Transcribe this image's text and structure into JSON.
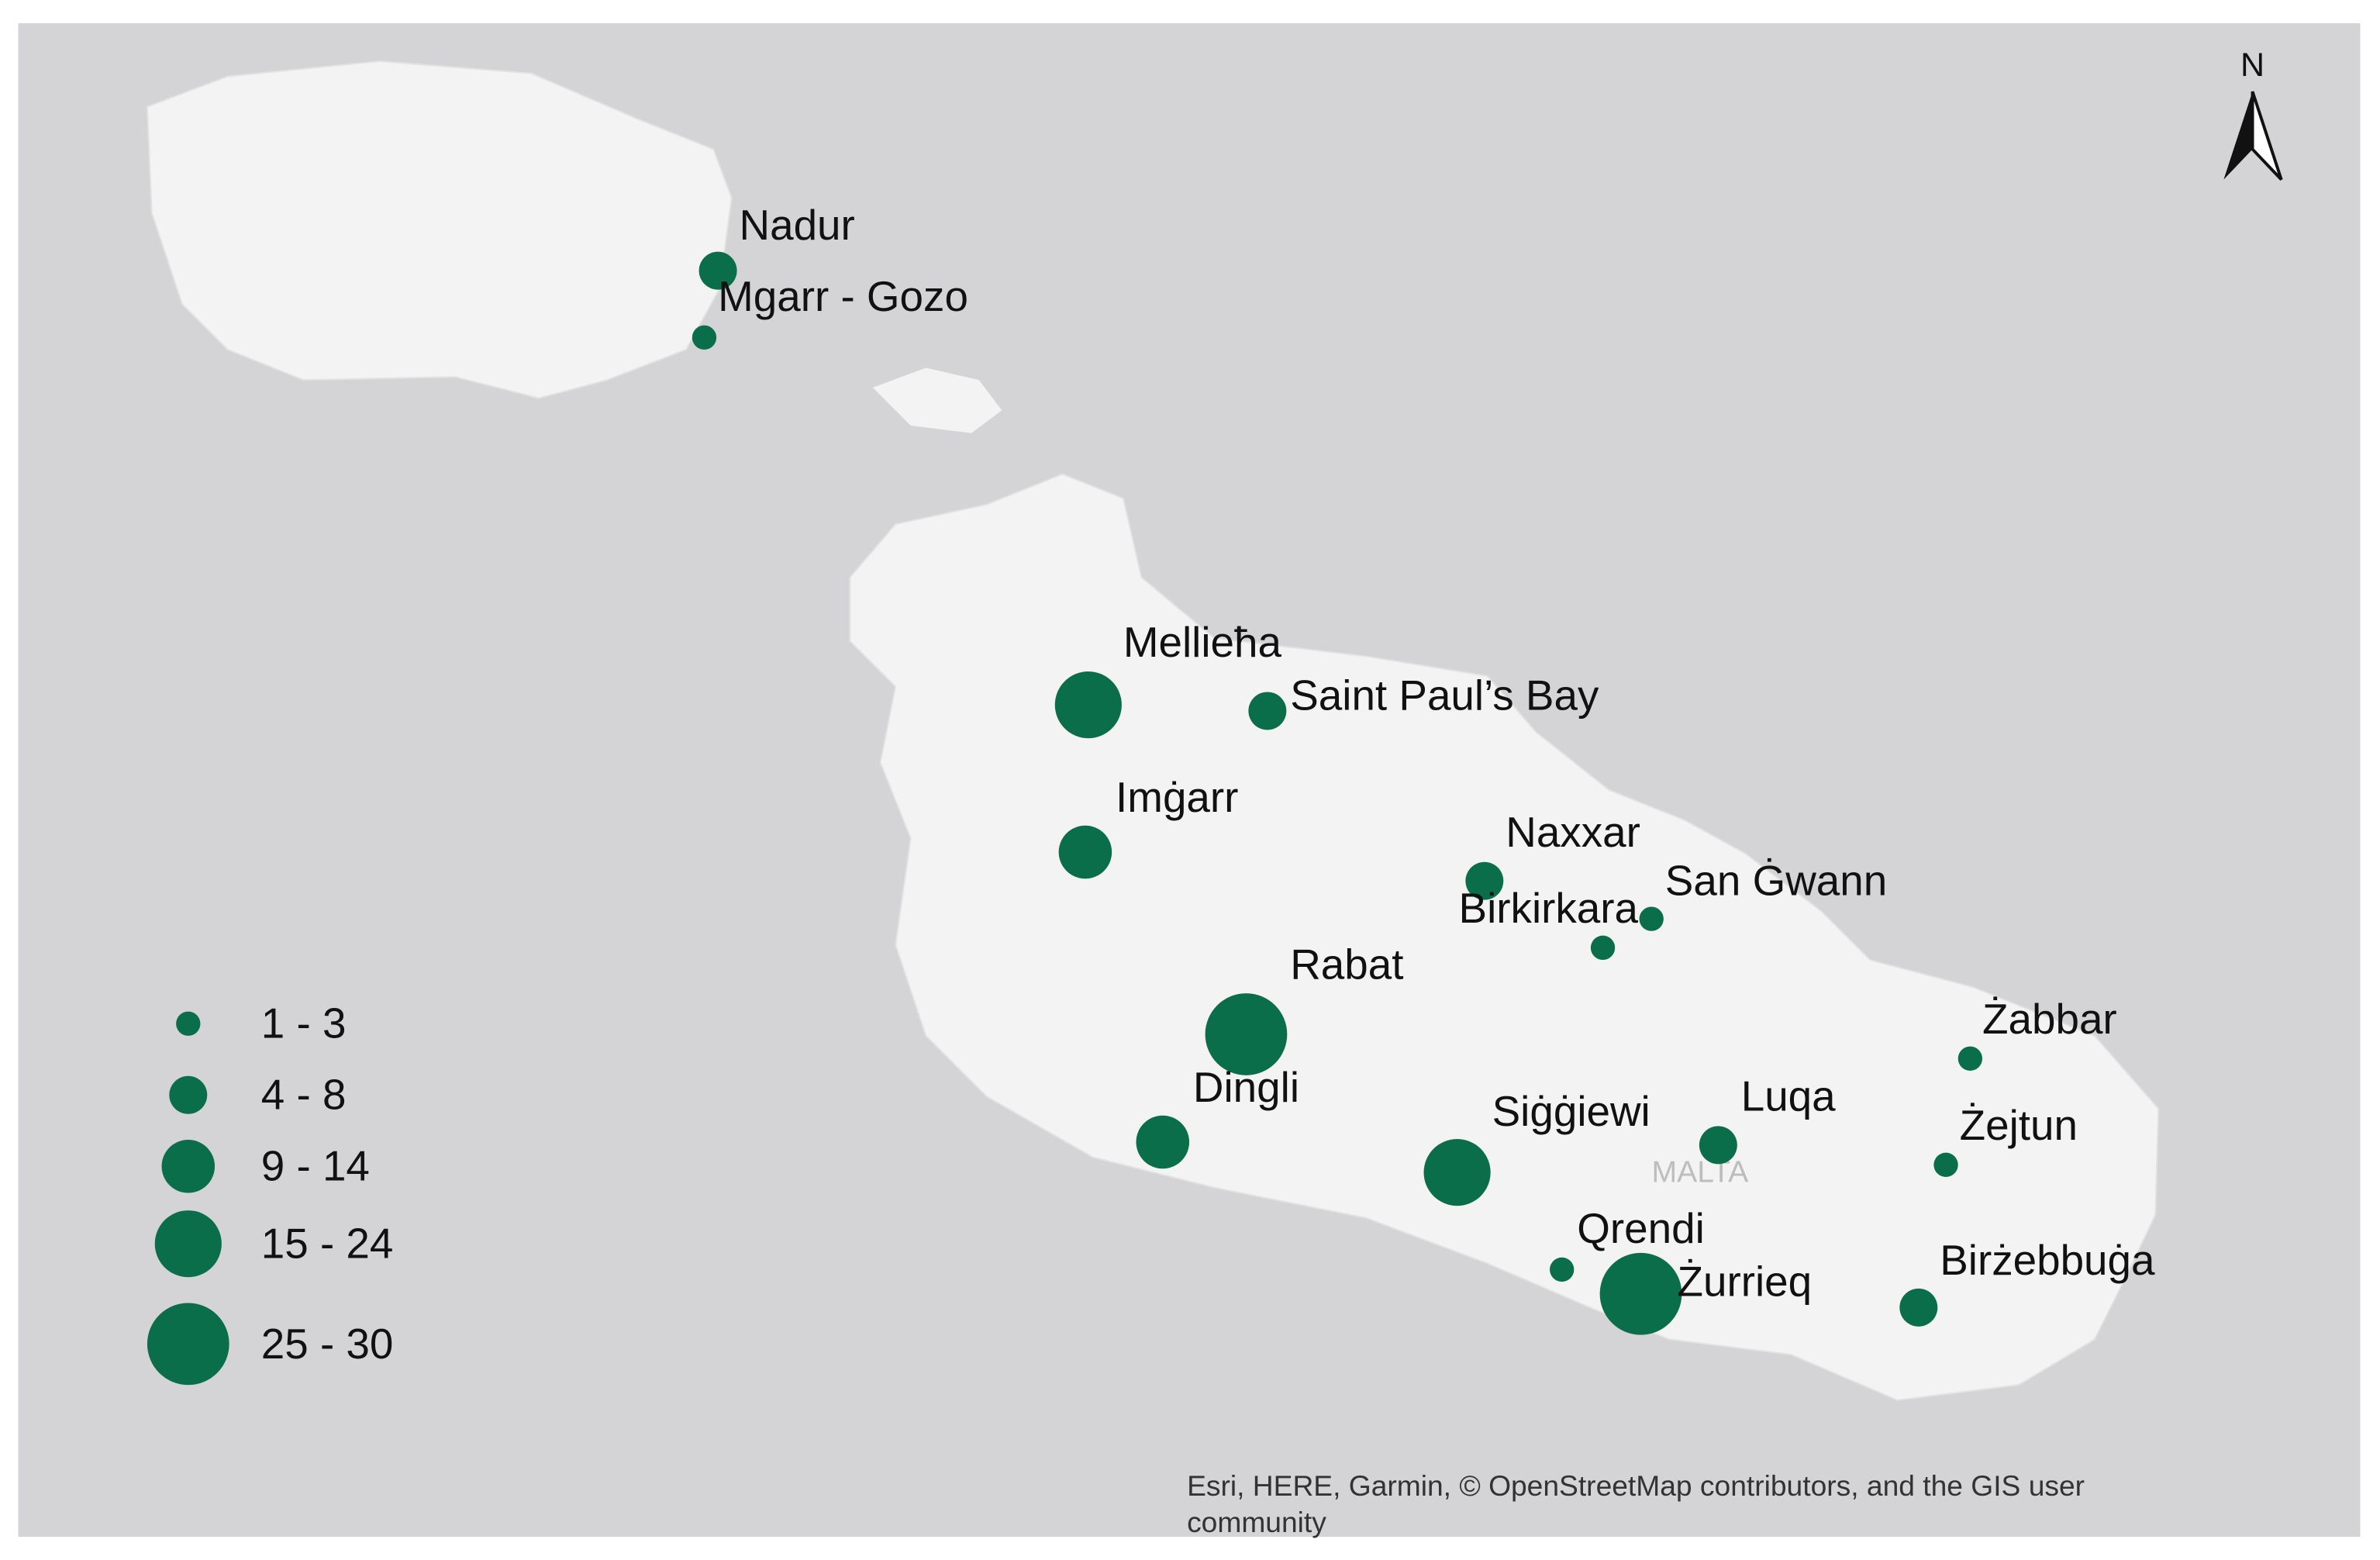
{
  "map": {
    "north_label": "N",
    "basemap_label": "MALTA",
    "attribution": [
      "Esri, HERE, Garmin, © OpenStreetMap contributors, and the GIS user",
      "community"
    ],
    "legend": [
      {
        "label": "1 - 3",
        "places": [
          "Mgarr - Gozo",
          "San Ġwann",
          "Birkirkara",
          "Żabbar",
          "Żejtun",
          "Qrendi"
        ]
      },
      {
        "label": "4 - 8",
        "places": [
          "Nadur",
          "Saint Paul’s Bay",
          "Naxxar",
          "Luqa",
          "Birżebbuġa"
        ]
      },
      {
        "label": "9 - 14",
        "places": [
          "Imġarr",
          "Dingli"
        ]
      },
      {
        "label": "15 - 24",
        "places": [
          "Mellieħa",
          "Siġġiewi"
        ]
      },
      {
        "label": "25 - 30",
        "places": [
          "Rabat",
          "Żurrieq"
        ]
      }
    ]
  }
}
